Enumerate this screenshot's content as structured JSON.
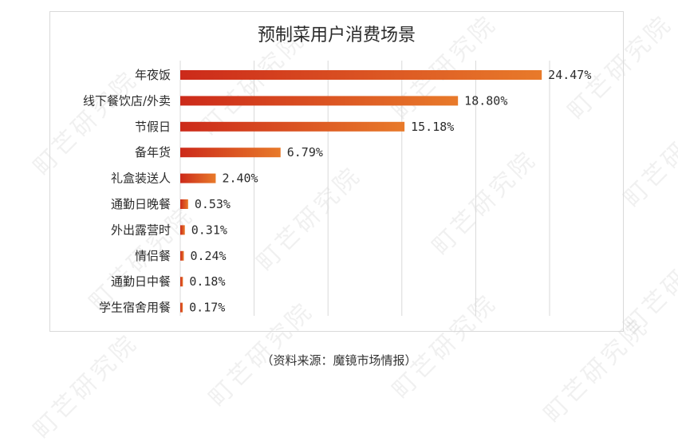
{
  "watermark_text": "町芒研究院",
  "chart_data": {
    "type": "bar",
    "orientation": "horizontal",
    "title": "预制菜用户消费场景",
    "categories": [
      "年夜饭",
      "线下餐饮店/外卖",
      "节假日",
      "备年货",
      "礼盒装送人",
      "通勤日晚餐",
      "外出露营时",
      "情侣餐",
      "通勤日中餐",
      "学生宿舍用餐"
    ],
    "values": [
      24.47,
      18.8,
      15.18,
      6.79,
      2.4,
      0.53,
      0.31,
      0.24,
      0.18,
      0.17
    ],
    "value_labels": [
      "24.47%",
      "18.80%",
      "15.18%",
      "6.79%",
      "2.40%",
      "0.53%",
      "0.31%",
      "0.24%",
      "0.18%",
      "0.17%"
    ],
    "unit": "%",
    "grid": "vertical",
    "bar_color_start": "#cc2a1a",
    "bar_color_end": "#e87a2a"
  },
  "source": "（资料来源：魔镜市场情报）"
}
